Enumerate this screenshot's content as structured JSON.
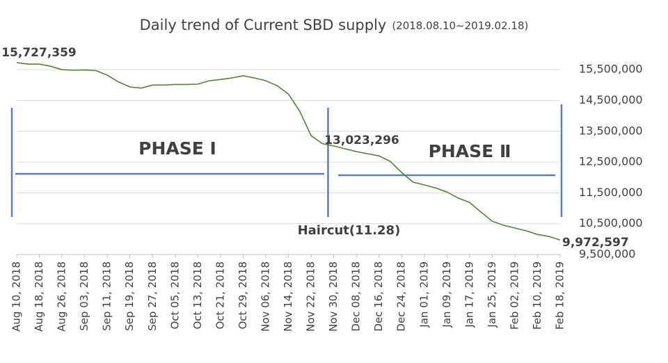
{
  "chart_data": {
    "type": "line",
    "title": "Daily trend of Current SBD supply",
    "subtitle": "(2018.08.10~2019.02.18)",
    "x": [
      "Aug 10, 2018",
      "Aug 14, 2018",
      "Aug 18, 2018",
      "Aug 22, 2018",
      "Aug 26, 2018",
      "Aug 30, 2018",
      "Sep 03, 2018",
      "Sep 07, 2018",
      "Sep 11, 2018",
      "Sep 15, 2018",
      "Sep 19, 2018",
      "Sep 23, 2018",
      "Sep 27, 2018",
      "Oct 01, 2018",
      "Oct 05, 2018",
      "Oct 09, 2018",
      "Oct 13, 2018",
      "Oct 17, 2018",
      "Oct 21, 2018",
      "Oct 25, 2018",
      "Oct 29, 2018",
      "Nov 02, 2018",
      "Nov 06, 2018",
      "Nov 10, 2018",
      "Nov 14, 2018",
      "Nov 18, 2018",
      "Nov 22, 2018",
      "Nov 26, 2018",
      "Nov 30, 2018",
      "Dec 04, 2018",
      "Dec 08, 2018",
      "Dec 12, 2018",
      "Dec 16, 2018",
      "Dec 20, 2018",
      "Dec 24, 2018",
      "Dec 28, 2018",
      "Jan 01, 2019",
      "Jan 05, 2019",
      "Jan 09, 2019",
      "Jan 13, 2019",
      "Jan 17, 2019",
      "Jan 21, 2019",
      "Jan 25, 2019",
      "Jan 29, 2019",
      "Feb 02, 2019",
      "Feb 06, 2019",
      "Feb 10, 2019",
      "Feb 14, 2019",
      "Feb 18, 2019"
    ],
    "series": [
      {
        "name": "Current SBD supply",
        "color": "#548235",
        "values": [
          15727359,
          15680000,
          15680000,
          15610000,
          15500000,
          15480000,
          15490000,
          15470000,
          15320000,
          15100000,
          14940000,
          14900000,
          15000000,
          15000000,
          15020000,
          15020000,
          15030000,
          15140000,
          15180000,
          15230000,
          15300000,
          15230000,
          15140000,
          14980000,
          14710000,
          14150000,
          13360000,
          13100000,
          13023296,
          12930000,
          12840000,
          12770000,
          12700000,
          12520000,
          12160000,
          11850000,
          11760000,
          11660000,
          11530000,
          11330000,
          11190000,
          10880000,
          10580000,
          10450000,
          10360000,
          10270000,
          10150000,
          10090000,
          9972597
        ]
      }
    ],
    "data_labels": [
      {
        "point": 0,
        "label": "15,727,359",
        "color": "#2f5597"
      },
      {
        "point": 28,
        "label": "13,023,296",
        "color": "#2f5597"
      },
      {
        "point": 48,
        "label": "9,972,597",
        "color": "#c55a11"
      }
    ],
    "xlim": [
      "Aug 10, 2018",
      "Feb 18, 2019"
    ],
    "xticks": [
      "Aug 10, 2018",
      "Aug 18, 2018",
      "Aug 26, 2018",
      "Sep 03, 2018",
      "Sep 11, 2018",
      "Sep 19, 2018",
      "Sep 27, 2018",
      "Oct 05, 2018",
      "Oct 13, 2018",
      "Oct 21, 2018",
      "Oct 29, 2018",
      "Nov 06, 2018",
      "Nov 14, 2018",
      "Nov 22, 2018",
      "Nov 30, 2018",
      "Dec 08, 2018",
      "Dec 16, 2018",
      "Dec 24, 2018",
      "Jan 01, 2019",
      "Jan 09, 2019",
      "Jan 17, 2019",
      "Jan 25, 2019",
      "Feb 02, 2019",
      "Feb 10, 2019",
      "Feb 18, 2019"
    ],
    "ylim": [
      9500000,
      16000000
    ],
    "yticks": [
      {
        "value": 9500000,
        "label": "9,500,000"
      },
      {
        "value": 10500000,
        "label": "10,500,000"
      },
      {
        "value": 11500000,
        "label": "11,500,000"
      },
      {
        "value": 12500000,
        "label": "12,500,000"
      },
      {
        "value": 13500000,
        "label": "13,500,000"
      },
      {
        "value": 14500000,
        "label": "14,500,000"
      },
      {
        "value": 15500000,
        "label": "15,500,000"
      }
    ],
    "grid": true,
    "haircut": {
      "label": "Haircut(11.28)",
      "x": "Nov 28, 2018",
      "color": "#4040c0"
    },
    "phases": [
      {
        "label": "PHASE Ⅰ",
        "color": "#7f9fcf"
      },
      {
        "label": "PHASE Ⅱ",
        "color": "#d4825a"
      }
    ],
    "bracket_color": "#5b7fb0"
  }
}
